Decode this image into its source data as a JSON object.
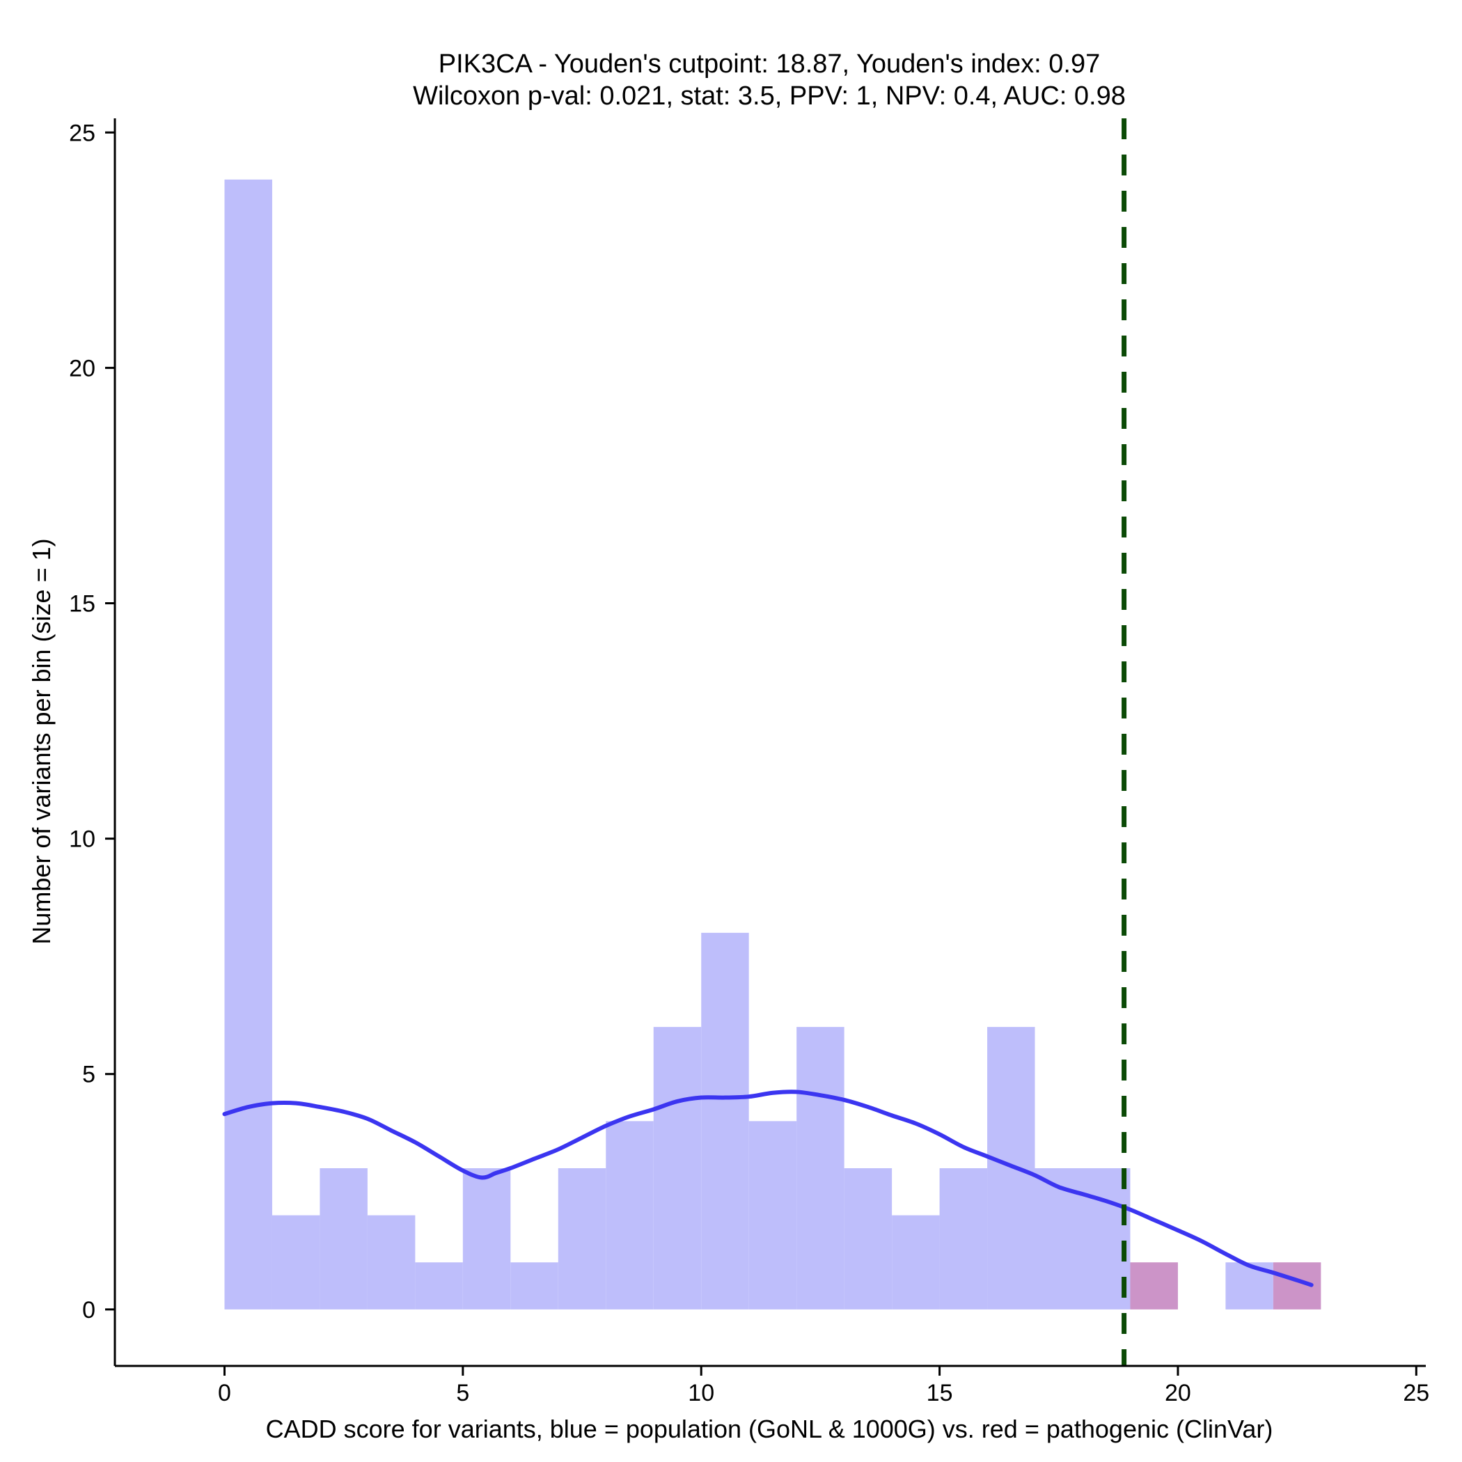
{
  "chart_data": {
    "type": "bar",
    "title_lines": [
      "PIK3CA - Youden's cutpoint: 18.87, Youden's index: 0.97",
      "Wilcoxon p-val: 0.021, stat: 3.5, PPV: 1, NPV: 0.4, AUC: 0.98"
    ],
    "xlabel": "CADD score for variants, blue = population (GoNL & 1000G) vs. red = pathogenic (ClinVar)",
    "ylabel": "Number of variants per bin (size = 1)",
    "xlim": [
      -2.3,
      25.2
    ],
    "ylim": [
      -1.2,
      25.3
    ],
    "x_ticks": [
      0,
      5,
      10,
      15,
      20,
      25
    ],
    "y_ticks": [
      0,
      5,
      10,
      15,
      20,
      25
    ],
    "bin_size": 1,
    "series": [
      {
        "name": "population (GoNL & 1000G)",
        "color": "#bebefb",
        "bins": [
          {
            "x0": 0,
            "x1": 1,
            "count": 24
          },
          {
            "x0": 1,
            "x1": 2,
            "count": 2
          },
          {
            "x0": 2,
            "x1": 3,
            "count": 3
          },
          {
            "x0": 3,
            "x1": 4,
            "count": 2
          },
          {
            "x0": 4,
            "x1": 5,
            "count": 1
          },
          {
            "x0": 5,
            "x1": 6,
            "count": 3
          },
          {
            "x0": 6,
            "x1": 7,
            "count": 1
          },
          {
            "x0": 7,
            "x1": 8,
            "count": 3
          },
          {
            "x0": 8,
            "x1": 9,
            "count": 4
          },
          {
            "x0": 9,
            "x1": 10,
            "count": 6
          },
          {
            "x0": 10,
            "x1": 11,
            "count": 8
          },
          {
            "x0": 11,
            "x1": 12,
            "count": 4
          },
          {
            "x0": 12,
            "x1": 13,
            "count": 6
          },
          {
            "x0": 13,
            "x1": 14,
            "count": 3
          },
          {
            "x0": 14,
            "x1": 15,
            "count": 2
          },
          {
            "x0": 15,
            "x1": 16,
            "count": 3
          },
          {
            "x0": 16,
            "x1": 17,
            "count": 6
          },
          {
            "x0": 17,
            "x1": 18,
            "count": 3
          },
          {
            "x0": 18,
            "x1": 19,
            "count": 3
          },
          {
            "x0": 21,
            "x1": 22,
            "count": 1
          }
        ]
      },
      {
        "name": "pathogenic (ClinVar)",
        "color": "#cc94c8",
        "bins": [
          {
            "x0": 19,
            "x1": 20,
            "count": 1
          },
          {
            "x0": 22,
            "x1": 23,
            "count": 1
          }
        ]
      }
    ],
    "density_curve": {
      "color": "#3b35f0",
      "points": [
        [
          0,
          4.15
        ],
        [
          0.5,
          4.3
        ],
        [
          1.0,
          4.38
        ],
        [
          1.5,
          4.38
        ],
        [
          2.0,
          4.3
        ],
        [
          2.5,
          4.2
        ],
        [
          3.0,
          4.05
        ],
        [
          3.5,
          3.8
        ],
        [
          4.0,
          3.55
        ],
        [
          4.5,
          3.25
        ],
        [
          5.0,
          2.95
        ],
        [
          5.4,
          2.8
        ],
        [
          5.7,
          2.9
        ],
        [
          6.0,
          3.0
        ],
        [
          6.5,
          3.2
        ],
        [
          7.0,
          3.4
        ],
        [
          7.5,
          3.65
        ],
        [
          8.0,
          3.9
        ],
        [
          8.5,
          4.1
        ],
        [
          9.0,
          4.25
        ],
        [
          9.5,
          4.42
        ],
        [
          10.0,
          4.5
        ],
        [
          10.5,
          4.5
        ],
        [
          11.0,
          4.52
        ],
        [
          11.5,
          4.6
        ],
        [
          12.0,
          4.62
        ],
        [
          12.5,
          4.55
        ],
        [
          13.0,
          4.45
        ],
        [
          13.5,
          4.3
        ],
        [
          14.0,
          4.12
        ],
        [
          14.5,
          3.95
        ],
        [
          15.0,
          3.72
        ],
        [
          15.5,
          3.45
        ],
        [
          16.0,
          3.25
        ],
        [
          16.5,
          3.05
        ],
        [
          17.0,
          2.85
        ],
        [
          17.5,
          2.6
        ],
        [
          18.0,
          2.45
        ],
        [
          18.5,
          2.3
        ],
        [
          19.0,
          2.12
        ],
        [
          19.5,
          1.9
        ],
        [
          20.0,
          1.68
        ],
        [
          20.5,
          1.45
        ],
        [
          21.0,
          1.18
        ],
        [
          21.5,
          0.93
        ],
        [
          22.0,
          0.78
        ],
        [
          22.5,
          0.62
        ],
        [
          22.8,
          0.52
        ]
      ]
    },
    "cutpoint": {
      "x": 18.87,
      "color": "#0b4a06",
      "style": "dashed"
    }
  }
}
